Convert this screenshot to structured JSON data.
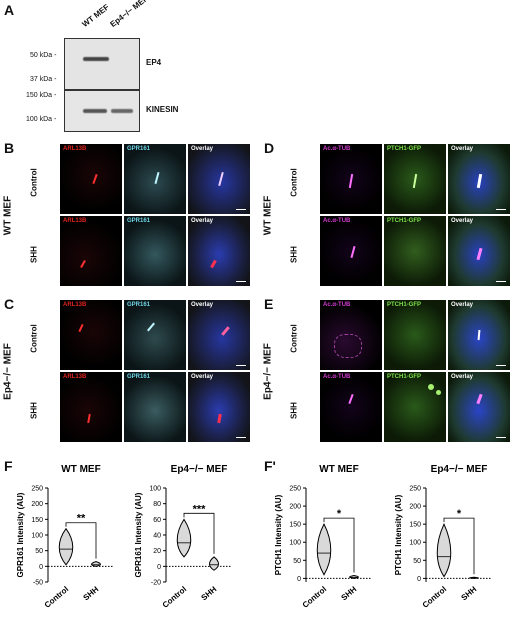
{
  "panels": {
    "A": "A",
    "B": "B",
    "C": "C",
    "D": "D",
    "E": "E",
    "F": "F",
    "Fp": "F'"
  },
  "blot": {
    "lanes": [
      "WT MEF",
      "Ep4−/− MEF"
    ],
    "markers": [
      "50 kDa -",
      "37 kDa -",
      "150 kDa -",
      "100 kDa -"
    ],
    "labels": [
      "EP4",
      "KINESIN"
    ]
  },
  "groups": {
    "wt": "WT MEF",
    "ko": "Ep4−/− MEF"
  },
  "rows": {
    "control": "Control",
    "shh": "SHH"
  },
  "channels": {
    "arl13b": "ARL13B",
    "gpr161": "GPR161",
    "overlay": "Overlay",
    "actub": "Ac.α-TUB",
    "ptch1": "PTCH1-GFP"
  },
  "colors": {
    "red": "#e0241f",
    "cyan": "#6fd3e6",
    "magenta": "#d03ad0",
    "green": "#7ee04a",
    "blue": "#2444c8"
  },
  "charts": {
    "F1": {
      "title": "WT MEF",
      "ylabel": "GPR161 Intensity (AU)",
      "sig": "**"
    },
    "F2": {
      "title": "Ep4−/− MEF",
      "ylabel": "GPR161 Intensity (AU)",
      "sig": "***"
    },
    "F3": {
      "title": "WT MEF",
      "ylabel": "PTCH1 Intensity (AU)",
      "sig": "*"
    },
    "F4": {
      "title": "Ep4−/− MEF",
      "ylabel": "PTCH1 Intensity (AU)",
      "sig": "*"
    }
  },
  "chart_data": [
    {
      "type": "violin",
      "title": "WT MEF",
      "ylabel": "GPR161 Intensity (AU)",
      "categories": [
        "Control",
        "SHH"
      ],
      "yticks": [
        -50,
        0,
        50,
        100,
        150,
        200,
        250
      ],
      "ylim": [
        -50,
        250
      ],
      "medians": [
        55,
        5
      ],
      "ranges": [
        [
          5,
          120
        ],
        [
          0,
          15
        ]
      ],
      "significance": "**"
    },
    {
      "type": "violin",
      "title": "Ep4−/− MEF",
      "ylabel": "GPR161 Intensity (AU)",
      "categories": [
        "Control",
        "SHH"
      ],
      "yticks": [
        -20,
        0,
        20,
        40,
        60,
        80,
        100
      ],
      "ylim": [
        -20,
        100
      ],
      "medians": [
        30,
        2
      ],
      "ranges": [
        [
          12,
          60
        ],
        [
          -5,
          12
        ]
      ],
      "significance": "***"
    },
    {
      "type": "violin",
      "title": "WT MEF",
      "ylabel": "PTCH1 Intensity (AU)",
      "categories": [
        "Control",
        "SHH"
      ],
      "yticks": [
        0,
        50,
        100,
        150,
        200,
        250
      ],
      "ylim": [
        -10,
        250
      ],
      "medians": [
        70,
        3
      ],
      "ranges": [
        [
          10,
          150
        ],
        [
          0,
          8
        ]
      ],
      "significance": "*"
    },
    {
      "type": "violin",
      "title": "Ep4−/− MEF",
      "ylabel": "PTCH1 Intensity (AU)",
      "categories": [
        "Control",
        "SHH"
      ],
      "yticks": [
        0,
        50,
        100,
        150,
        200,
        250
      ],
      "ylim": [
        -10,
        250
      ],
      "medians": [
        60,
        1
      ],
      "ranges": [
        [
          5,
          150
        ],
        [
          0,
          3
        ]
      ],
      "significance": "*"
    }
  ]
}
